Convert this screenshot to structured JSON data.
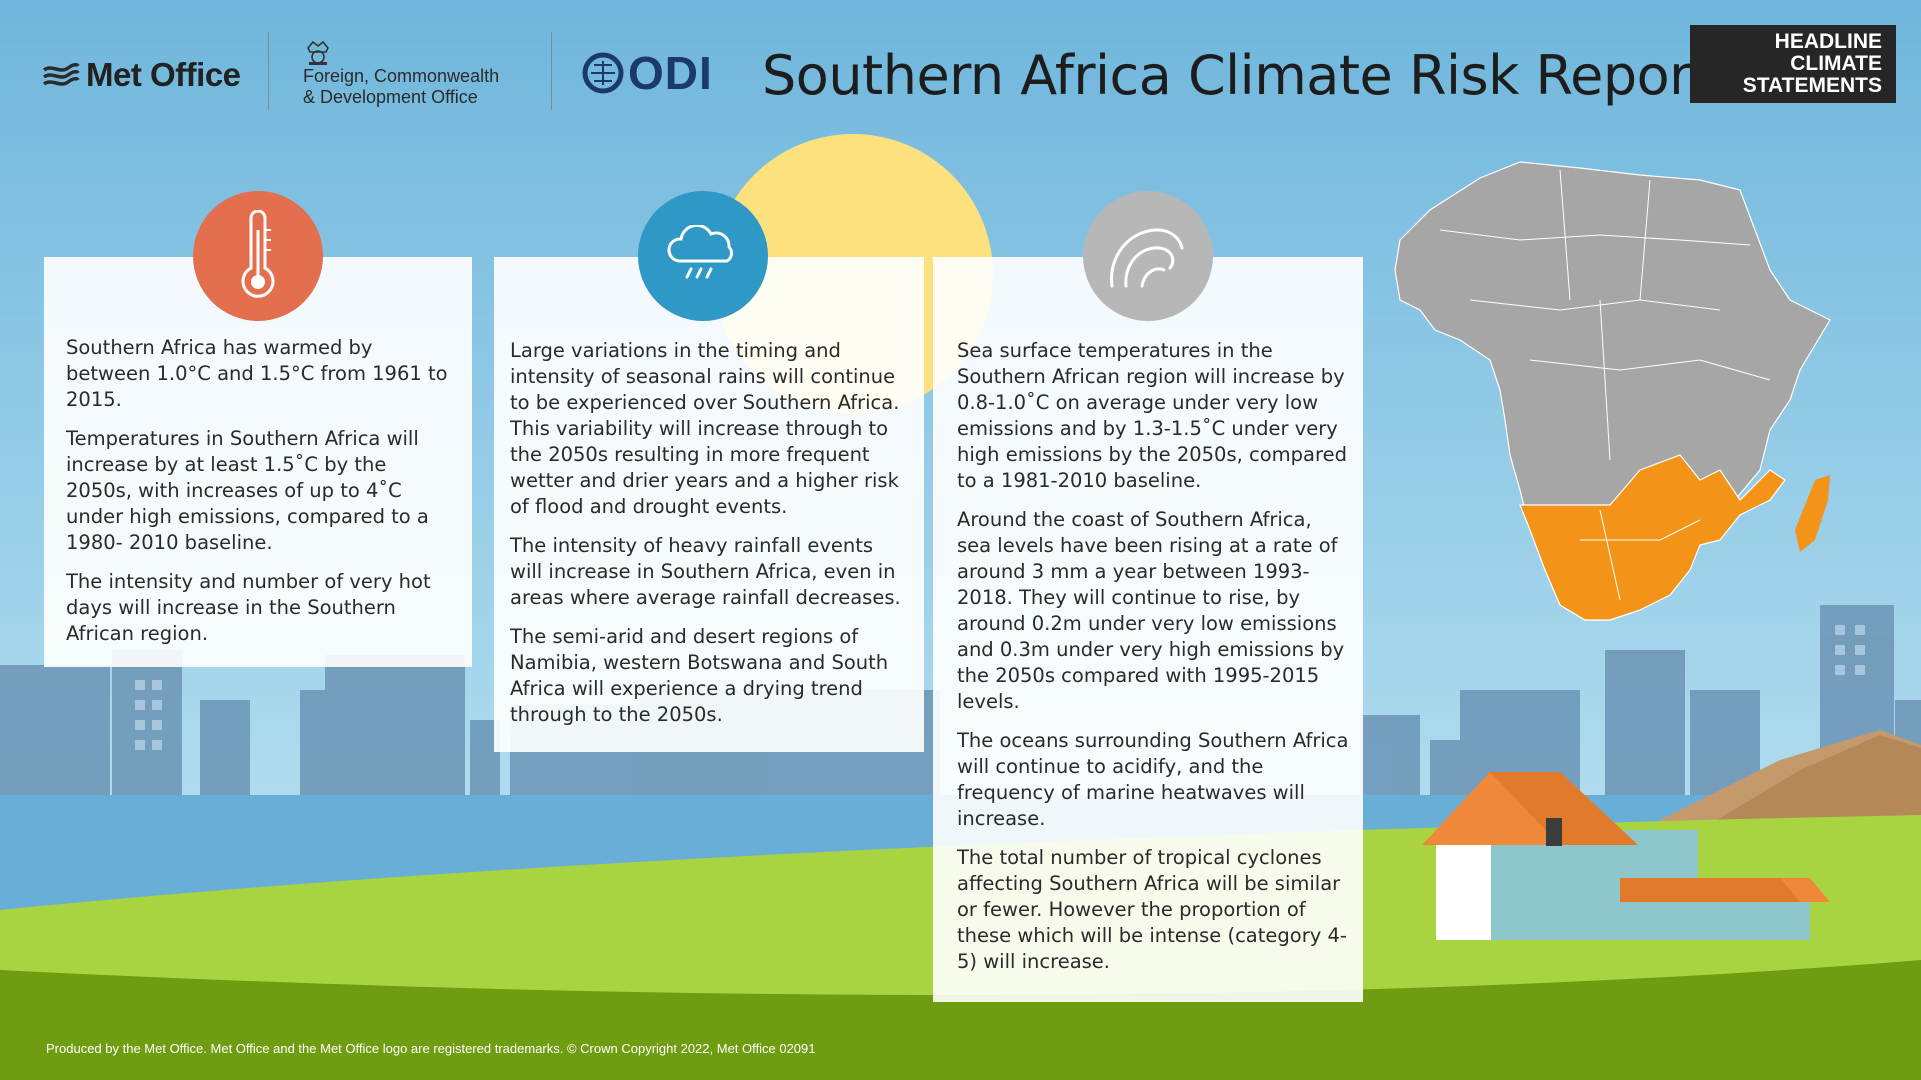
{
  "header": {
    "metoffice_wordmark": "Met Office",
    "fcdo_line1": "Foreign, Commonwealth",
    "fcdo_line2": "& Development Office",
    "odi_wordmark": "ODI",
    "title": "Southern Africa Climate Risk Report",
    "badge": [
      "HEADLINE",
      "CLIMATE",
      "STATEMENTS"
    ]
  },
  "cards": {
    "temperature": {
      "icon": "thermometer-icon",
      "paragraphs": [
        "Southern Africa has warmed by between 1.0°C and 1.5°C from 1961 to 2015.",
        "Temperatures in Southern Africa will increase by at least 1.5˚C by the 2050s, with increases of up to 4˚C under high emissions, compared to a 1980- 2010 baseline.",
        "The intensity and number of very hot days will increase in the Southern African region."
      ]
    },
    "rainfall": {
      "icon": "rain-cloud-icon",
      "paragraphs": [
        "Large variations in the timing and intensity of seasonal rains will continue to be experienced over Southern Africa. This variability will increase through to the 2050s resulting in more frequent wetter and drier years and a higher risk of flood and drought events.",
        "The intensity of heavy rainfall events will increase in Southern Africa, even in areas where average rainfall decreases.",
        "The semi-arid and desert regions of Namibia, western Botswana and South Africa will experience a drying trend through to the 2050s."
      ]
    },
    "sea": {
      "icon": "wave-icon",
      "paragraphs": [
        "Sea surface temperatures in the Southern African region will increase by 0.8-1.0˚C on average under very low emissions and by 1.3-1.5˚C under very high emissions by the 2050s, compared to a 1981-2010 baseline.",
        "Around the coast of Southern Africa, sea levels have been rising at a rate of around 3 mm a year between 1993-2018. They will continue to rise, by around 0.2m under very low emissions and 0.3m under very high emissions by the 2050s compared with 1995-2015 levels.",
        "The oceans surrounding Southern Africa will continue to acidify, and the frequency of marine heatwaves will increase.",
        "The total number of tropical cyclones affecting Southern Africa will be similar or fewer. However the proportion of these which will be intense (category 4-5) will increase."
      ]
    }
  },
  "footer": "Produced by the Met Office. Met Office and the Met Office logo are registered trademarks. © Crown Copyright 2022, Met Office 02091",
  "colors": {
    "sky_top": "#6fb6dc",
    "sky_bottom": "#bfe3f0",
    "sun": "#fde17f",
    "city": "#6f98b8",
    "water": "#68aed6",
    "grass": "#a9d442",
    "grass_dark": "#6f9d12",
    "africa_grey": "#a6a6a6",
    "southern_africa_orange": "#f39318",
    "roof_orange": "#f0883a",
    "house_wall": "#8dc7cc",
    "mountain": "#c49a6c",
    "badge_bg": "#262626",
    "thermometer_circle": "#e36f4e",
    "rain_circle": "#2e98c6",
    "wave_circle": "#b7b7b7"
  }
}
